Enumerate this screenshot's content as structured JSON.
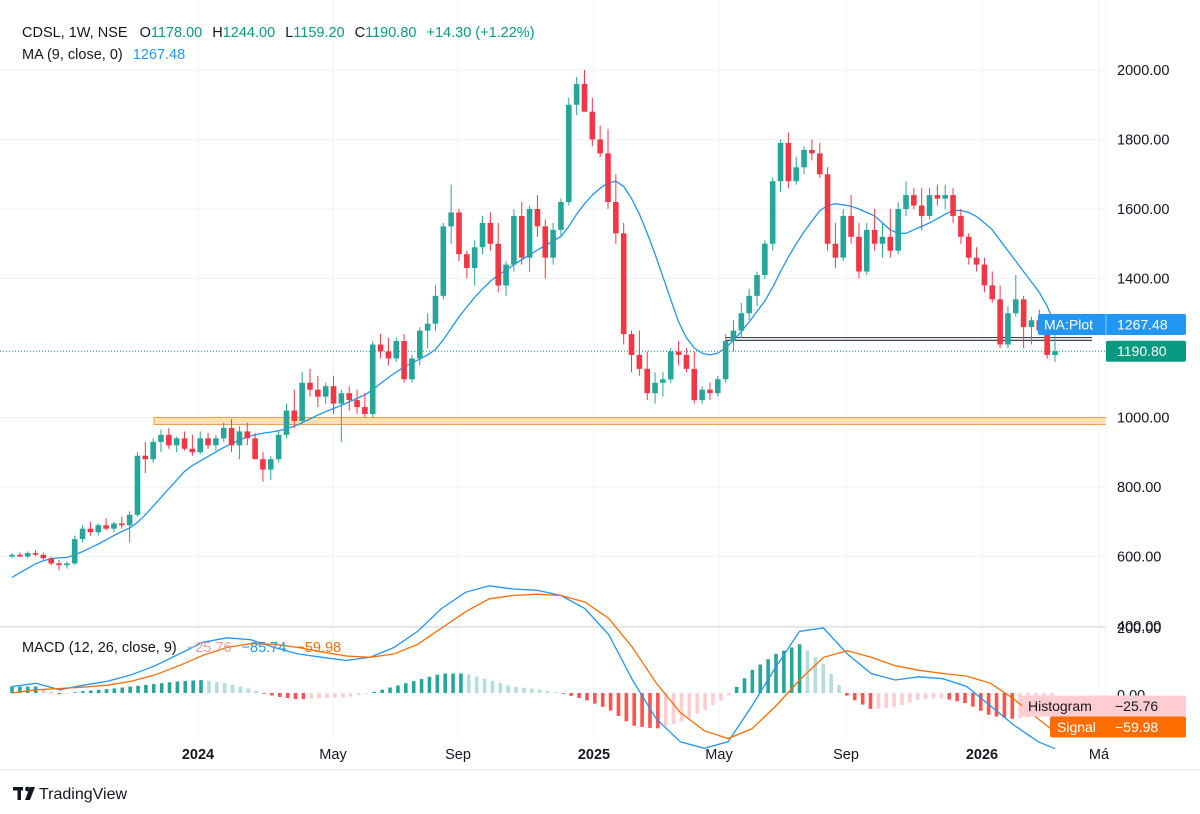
{
  "header": {
    "symbol": "CDSL, 1W, NSE",
    "o_label": "O",
    "o_value": "1178.00",
    "h_label": "H",
    "h_value": "1244.00",
    "l_label": "L",
    "l_value": "1159.20",
    "c_label": "C",
    "c_value": "1190.80",
    "change": "+14.30 (+1.22%)",
    "ma_label": "MA (9, close, 0)",
    "ma_value": "1267.48"
  },
  "macd_header": {
    "label": "MACD (12, 26, close, 9)",
    "histogram_value": "−25.76",
    "macd_value": "−85.74",
    "signal_value": "−59.98"
  },
  "price_axis": {
    "ticks": [
      "2000.00",
      "1800.00",
      "1600.00",
      "1400.00",
      "1000.00",
      "800.00",
      "600.00",
      "400.00"
    ]
  },
  "macd_axis": {
    "ticks": [
      "200.00",
      "0.00"
    ]
  },
  "time_axis": {
    "labels": [
      "2024",
      "May",
      "Sep",
      "2025",
      "May",
      "Sep",
      "2026",
      "Má"
    ]
  },
  "badges": {
    "ma_plot_label": "MA:Plot",
    "ma_plot_value": "1267.48",
    "last_price": "1190.80",
    "histogram_label": "Histogram",
    "histogram_value": "−25.76",
    "signal_label": "Signal",
    "signal_value": "−59.98"
  },
  "footer": {
    "brand": "TradingView"
  },
  "colors": {
    "up": "#26a69a",
    "down": "#f23645",
    "ma": "#2196f3",
    "macd": "#2196f3",
    "signal": "#ff6d00",
    "hist_pos_strong": "#26a69a",
    "hist_pos_weak": "#b2dfdb",
    "hist_neg_strong": "#ff5252",
    "hist_neg_weak": "#ffcdd2",
    "zone_fill": "#ffe0b2",
    "zone_stroke": "#e6a23c"
  },
  "chart_data": [
    {
      "type": "candlestick",
      "symbol": "CDSL",
      "interval": "1W",
      "exchange": "NSE",
      "last_price": 1190.8,
      "ylim": [
        400,
        2000
      ],
      "grid": true,
      "candles_ohlc": [
        [
          600,
          610,
          595,
          605
        ],
        [
          605,
          612,
          598,
          600
        ],
        [
          600,
          615,
          595,
          610
        ],
        [
          610,
          618,
          600,
          605
        ],
        [
          605,
          612,
          590,
          595
        ],
        [
          595,
          600,
          575,
          580
        ],
        [
          580,
          590,
          560,
          575
        ],
        [
          575,
          585,
          565,
          580
        ],
        [
          580,
          660,
          575,
          650
        ],
        [
          650,
          690,
          640,
          680
        ],
        [
          680,
          700,
          660,
          670
        ],
        [
          670,
          695,
          660,
          690
        ],
        [
          690,
          710,
          675,
          680
        ],
        [
          680,
          700,
          670,
          695
        ],
        [
          695,
          715,
          680,
          690
        ],
        [
          690,
          730,
          640,
          720
        ],
        [
          720,
          900,
          715,
          890
        ],
        [
          890,
          930,
          840,
          880
        ],
        [
          880,
          940,
          870,
          930
        ],
        [
          930,
          965,
          900,
          950
        ],
        [
          950,
          970,
          910,
          920
        ],
        [
          920,
          945,
          900,
          940
        ],
        [
          940,
          960,
          905,
          910
        ],
        [
          910,
          950,
          890,
          900
        ],
        [
          900,
          960,
          895,
          940
        ],
        [
          940,
          955,
          910,
          920
        ],
        [
          920,
          950,
          905,
          940
        ],
        [
          940,
          985,
          930,
          970
        ],
        [
          970,
          995,
          900,
          920
        ],
        [
          920,
          975,
          880,
          960
        ],
        [
          960,
          985,
          920,
          940
        ],
        [
          940,
          955,
          880,
          880
        ],
        [
          880,
          900,
          815,
          850
        ],
        [
          850,
          890,
          820,
          880
        ],
        [
          880,
          960,
          870,
          950
        ],
        [
          950,
          1040,
          940,
          1020
        ],
        [
          1020,
          1080,
          970,
          990
        ],
        [
          990,
          1130,
          980,
          1100
        ],
        [
          1100,
          1140,
          1060,
          1080
        ],
        [
          1080,
          1120,
          1030,
          1060
        ],
        [
          1060,
          1100,
          1040,
          1090
        ],
        [
          1090,
          1120,
          1010,
          1040
        ],
        [
          1040,
          1080,
          930,
          1070
        ],
        [
          1070,
          1090,
          1020,
          1050
        ],
        [
          1050,
          1080,
          1010,
          1030
        ],
        [
          1030,
          1070,
          1000,
          1010
        ],
        [
          1010,
          1220,
          1000,
          1210
        ],
        [
          1210,
          1240,
          1170,
          1190
        ],
        [
          1190,
          1230,
          1150,
          1170
        ],
        [
          1170,
          1230,
          1160,
          1220
        ],
        [
          1220,
          1240,
          1100,
          1110
        ],
        [
          1110,
          1180,
          1100,
          1170
        ],
        [
          1170,
          1260,
          1150,
          1250
        ],
        [
          1250,
          1300,
          1200,
          1270
        ],
        [
          1270,
          1380,
          1250,
          1350
        ],
        [
          1350,
          1560,
          1340,
          1550
        ],
        [
          1550,
          1670,
          1500,
          1590
        ],
        [
          1590,
          1600,
          1450,
          1470
        ],
        [
          1470,
          1480,
          1400,
          1430
        ],
        [
          1430,
          1510,
          1380,
          1490
        ],
        [
          1490,
          1580,
          1470,
          1560
        ],
        [
          1560,
          1590,
          1480,
          1500
        ],
        [
          1500,
          1560,
          1360,
          1380
        ],
        [
          1380,
          1450,
          1350,
          1440
        ],
        [
          1440,
          1600,
          1420,
          1580
        ],
        [
          1580,
          1620,
          1440,
          1460
        ],
        [
          1460,
          1610,
          1420,
          1600
        ],
        [
          1600,
          1640,
          1520,
          1550
        ],
        [
          1550,
          1570,
          1400,
          1460
        ],
        [
          1460,
          1560,
          1440,
          1540
        ],
        [
          1540,
          1630,
          1520,
          1620
        ],
        [
          1620,
          1920,
          1610,
          1900
        ],
        [
          1900,
          1980,
          1870,
          1960
        ],
        [
          1960,
          2000,
          1880,
          1880
        ],
        [
          1880,
          1920,
          1780,
          1800
        ],
        [
          1800,
          1840,
          1750,
          1760
        ],
        [
          1760,
          1830,
          1600,
          1620
        ],
        [
          1620,
          1700,
          1500,
          1530
        ],
        [
          1530,
          1560,
          1210,
          1240
        ],
        [
          1240,
          1250,
          1130,
          1180
        ],
        [
          1180,
          1250,
          1120,
          1140
        ],
        [
          1140,
          1190,
          1050,
          1070
        ],
        [
          1070,
          1130,
          1040,
          1100
        ],
        [
          1100,
          1130,
          1060,
          1110
        ],
        [
          1110,
          1200,
          1100,
          1190
        ],
        [
          1190,
          1220,
          1150,
          1180
        ],
        [
          1180,
          1200,
          1130,
          1140
        ],
        [
          1140,
          1190,
          1040,
          1050
        ],
        [
          1050,
          1090,
          1040,
          1080
        ],
        [
          1080,
          1100,
          1050,
          1070
        ],
        [
          1070,
          1120,
          1060,
          1110
        ],
        [
          1110,
          1240,
          1100,
          1220
        ],
        [
          1220,
          1280,
          1190,
          1250
        ],
        [
          1250,
          1330,
          1230,
          1300
        ],
        [
          1300,
          1370,
          1280,
          1350
        ],
        [
          1350,
          1420,
          1320,
          1410
        ],
        [
          1410,
          1510,
          1400,
          1500
        ],
        [
          1500,
          1690,
          1480,
          1680
        ],
        [
          1680,
          1800,
          1650,
          1790
        ],
        [
          1790,
          1820,
          1660,
          1680
        ],
        [
          1680,
          1750,
          1670,
          1720
        ],
        [
          1720,
          1780,
          1700,
          1770
        ],
        [
          1770,
          1800,
          1740,
          1760
        ],
        [
          1760,
          1790,
          1690,
          1700
        ],
        [
          1700,
          1720,
          1480,
          1500
        ],
        [
          1500,
          1560,
          1430,
          1460
        ],
        [
          1460,
          1600,
          1450,
          1580
        ],
        [
          1580,
          1640,
          1500,
          1520
        ],
        [
          1520,
          1560,
          1400,
          1420
        ],
        [
          1420,
          1560,
          1410,
          1540
        ],
        [
          1540,
          1600,
          1480,
          1500
        ],
        [
          1500,
          1560,
          1460,
          1520
        ],
        [
          1520,
          1600,
          1460,
          1480
        ],
        [
          1480,
          1620,
          1470,
          1600
        ],
        [
          1600,
          1680,
          1580,
          1640
        ],
        [
          1640,
          1660,
          1600,
          1610
        ],
        [
          1610,
          1660,
          1540,
          1580
        ],
        [
          1580,
          1660,
          1570,
          1640
        ],
        [
          1640,
          1670,
          1610,
          1630
        ],
        [
          1630,
          1670,
          1600,
          1640
        ],
        [
          1640,
          1660,
          1560,
          1580
        ],
        [
          1580,
          1600,
          1500,
          1520
        ],
        [
          1520,
          1530,
          1440,
          1460
        ],
        [
          1460,
          1490,
          1420,
          1440
        ],
        [
          1440,
          1460,
          1360,
          1380
        ],
        [
          1380,
          1420,
          1330,
          1340
        ],
        [
          1340,
          1380,
          1200,
          1210
        ],
        [
          1210,
          1320,
          1200,
          1300
        ],
        [
          1300,
          1410,
          1290,
          1340
        ],
        [
          1340,
          1350,
          1200,
          1260
        ],
        [
          1260,
          1290,
          1210,
          1280
        ],
        [
          1280,
          1310,
          1240,
          1250
        ],
        [
          1250,
          1250,
          1170,
          1180
        ],
        [
          1180,
          1244,
          1159.2,
          1190.8
        ]
      ],
      "ma_9_close": [
        540,
        553,
        566,
        579,
        588,
        594,
        596,
        597,
        605,
        614,
        625,
        636,
        648,
        660,
        672,
        682,
        698,
        720,
        745,
        770,
        795,
        820,
        845,
        862,
        875,
        888,
        901,
        914,
        925,
        935,
        945,
        950,
        955,
        958,
        962,
        968,
        975,
        985,
        996,
        1007,
        1017,
        1026,
        1035,
        1045,
        1055,
        1065,
        1080,
        1098,
        1115,
        1131,
        1145,
        1157,
        1168,
        1180,
        1196,
        1224,
        1257,
        1290,
        1318,
        1346,
        1370,
        1392,
        1410,
        1424,
        1440,
        1454,
        1468,
        1482,
        1495,
        1508,
        1521,
        1550,
        1585,
        1615,
        1640,
        1660,
        1675,
        1680,
        1665,
        1630,
        1585,
        1530,
        1470,
        1405,
        1340,
        1275,
        1230,
        1200,
        1185,
        1180,
        1185,
        1200,
        1222,
        1247,
        1275,
        1305,
        1335,
        1375,
        1420,
        1462,
        1500,
        1535,
        1565,
        1595,
        1610,
        1615,
        1612,
        1608,
        1600,
        1590,
        1580,
        1560,
        1540,
        1530,
        1530,
        1540,
        1550,
        1560,
        1572,
        1585,
        1595,
        1596,
        1590,
        1578,
        1560,
        1540,
        1510,
        1480,
        1450,
        1420,
        1390,
        1360,
        1320,
        1267.48
      ],
      "price_levels": [
        {
          "kind": "zone",
          "from": 980,
          "to": 1000
        },
        {
          "kind": "line",
          "value": 1230
        },
        {
          "kind": "line",
          "value": 1222
        }
      ]
    },
    {
      "type": "macd",
      "params": [
        12,
        26,
        9
      ],
      "ylim": [
        -100,
        200
      ],
      "histogram_last": -25.76,
      "macd_last": -85.74,
      "signal_last": -59.98,
      "macd_points": [
        [
          0,
          10
        ],
        [
          10,
          15
        ],
        [
          20,
          5
        ],
        [
          30,
          12
        ],
        [
          40,
          18
        ],
        [
          50,
          28
        ],
        [
          60,
          42
        ],
        [
          70,
          60
        ],
        [
          80,
          78
        ],
        [
          90,
          85
        ],
        [
          100,
          82
        ],
        [
          110,
          70
        ],
        [
          120,
          60
        ],
        [
          130,
          55
        ],
        [
          140,
          50
        ],
        [
          150,
          55
        ],
        [
          160,
          70
        ],
        [
          170,
          95
        ],
        [
          180,
          130
        ],
        [
          190,
          155
        ],
        [
          200,
          165
        ],
        [
          210,
          160
        ],
        [
          220,
          158
        ],
        [
          230,
          150
        ],
        [
          240,
          130
        ],
        [
          250,
          90
        ],
        [
          260,
          20
        ],
        [
          270,
          -40
        ],
        [
          280,
          -75
        ],
        [
          290,
          -85
        ],
        [
          300,
          -75
        ],
        [
          310,
          -20
        ],
        [
          320,
          40
        ],
        [
          330,
          95
        ],
        [
          340,
          100
        ],
        [
          350,
          60
        ],
        [
          360,
          30
        ],
        [
          370,
          20
        ],
        [
          380,
          25
        ],
        [
          390,
          22
        ],
        [
          400,
          10
        ],
        [
          410,
          -20
        ],
        [
          420,
          -50
        ],
        [
          430,
          -75
        ],
        [
          437,
          -85.74
        ]
      ],
      "signal_points": [
        [
          0,
          0
        ],
        [
          10,
          5
        ],
        [
          20,
          7
        ],
        [
          30,
          9
        ],
        [
          40,
          12
        ],
        [
          50,
          18
        ],
        [
          60,
          28
        ],
        [
          70,
          42
        ],
        [
          80,
          58
        ],
        [
          90,
          70
        ],
        [
          100,
          76
        ],
        [
          110,
          75
        ],
        [
          120,
          70
        ],
        [
          130,
          63
        ],
        [
          140,
          57
        ],
        [
          150,
          55
        ],
        [
          160,
          60
        ],
        [
          170,
          75
        ],
        [
          180,
          100
        ],
        [
          190,
          125
        ],
        [
          200,
          145
        ],
        [
          210,
          150
        ],
        [
          220,
          152
        ],
        [
          230,
          150
        ],
        [
          240,
          140
        ],
        [
          250,
          115
        ],
        [
          260,
          70
        ],
        [
          270,
          15
        ],
        [
          280,
          -30
        ],
        [
          290,
          -58
        ],
        [
          300,
          -70
        ],
        [
          310,
          -55
        ],
        [
          320,
          -20
        ],
        [
          330,
          20
        ],
        [
          340,
          55
        ],
        [
          350,
          65
        ],
        [
          360,
          55
        ],
        [
          370,
          42
        ],
        [
          380,
          35
        ],
        [
          390,
          30
        ],
        [
          400,
          26
        ],
        [
          410,
          15
        ],
        [
          420,
          -10
        ],
        [
          430,
          -40
        ],
        [
          437,
          -59.98
        ]
      ]
    }
  ]
}
